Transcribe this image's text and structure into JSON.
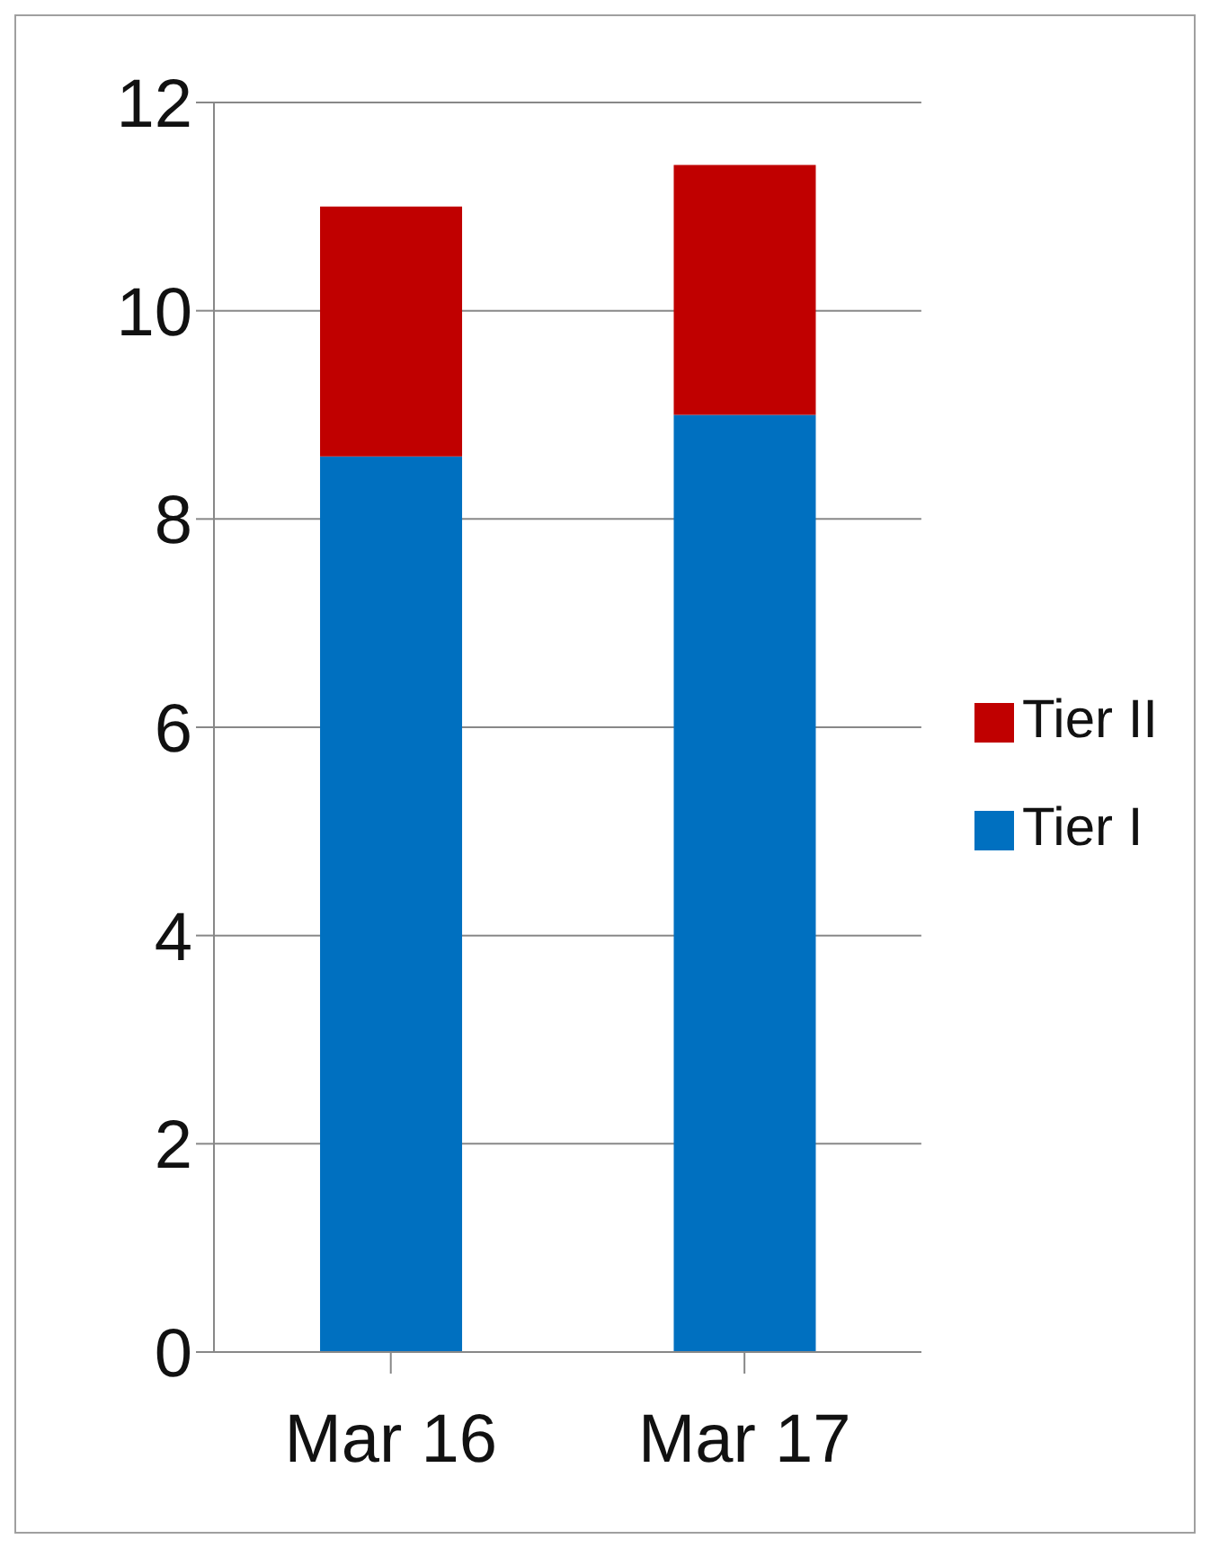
{
  "chart_data": {
    "type": "bar",
    "stacked": true,
    "categories": [
      "Mar 16",
      "Mar 17"
    ],
    "series": [
      {
        "name": "Tier I",
        "color": "#0070c0",
        "values": [
          8.6,
          9.0
        ]
      },
      {
        "name": "Tier II",
        "color": "#c00000",
        "values": [
          2.4,
          2.4
        ]
      }
    ],
    "ylim": [
      0,
      12
    ],
    "yticks": [
      0,
      2,
      4,
      6,
      8,
      10,
      12
    ],
    "grid": "y",
    "legend": "right"
  }
}
